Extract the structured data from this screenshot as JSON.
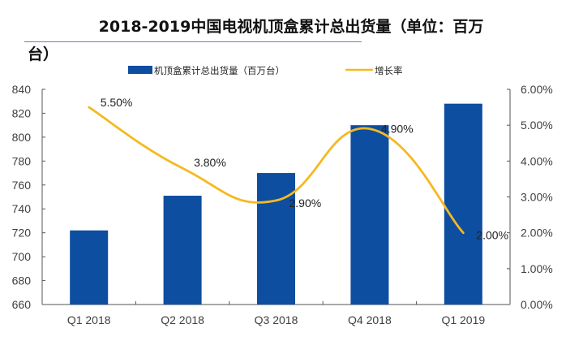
{
  "chart_data": {
    "type": "bar",
    "title": "2018-2019中国电视机顶盒累计总出货量（单位：百万台）",
    "title_line1": "2018-2019中国电视机顶盒累计总出货量（单位：百万",
    "title_line2": "台）",
    "categories": [
      "Q1 2018",
      "Q2 2018",
      "Q3 2018",
      "Q4 2018",
      "Q1 2019"
    ],
    "series": [
      {
        "name": "机顶盒累计总出货量（百万台）",
        "type": "bar",
        "axis": "left",
        "color": "#0d4ea0",
        "values": [
          722,
          751,
          770,
          810,
          828
        ]
      },
      {
        "name": "增长率",
        "type": "line",
        "axis": "right",
        "color": "#f5b921",
        "smooth": true,
        "values": [
          5.5,
          3.8,
          2.9,
          4.9,
          2.0
        ],
        "labels": [
          "5.50%",
          "3.80%",
          "2.90%",
          "4.90%",
          "2.00%"
        ]
      }
    ],
    "left_axis": {
      "ylim": [
        660,
        840
      ],
      "ticks": [
        660,
        680,
        700,
        720,
        740,
        760,
        780,
        800,
        820,
        840
      ]
    },
    "right_axis": {
      "ylim": [
        0,
        6
      ],
      "ticks": [
        "0.00%",
        "1.00%",
        "2.00%",
        "3.00%",
        "4.00%",
        "5.00%",
        "6.00%"
      ]
    },
    "xlabel": "",
    "ylabel": "",
    "grid": false,
    "legend_position": "top-center"
  }
}
